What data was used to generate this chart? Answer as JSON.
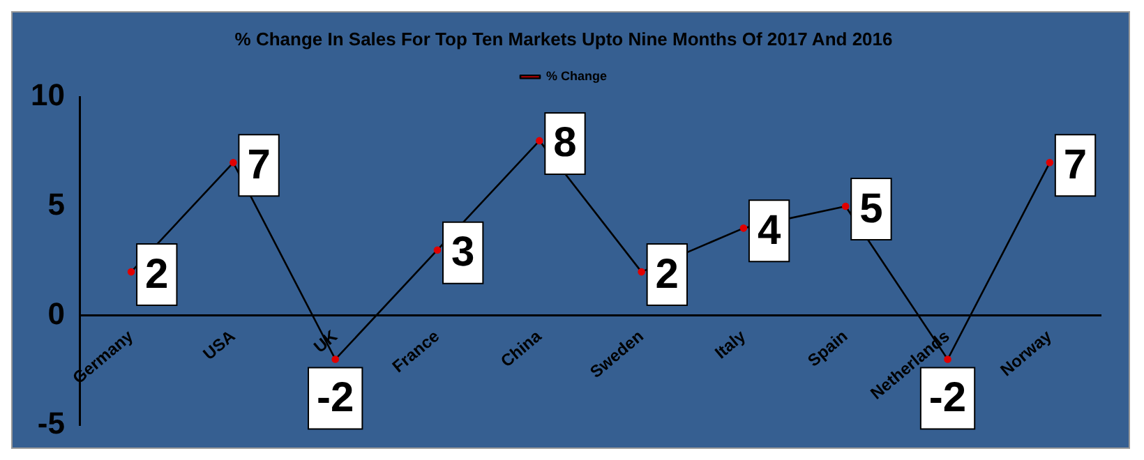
{
  "chart_data": {
    "type": "line",
    "title": "% Change In Sales For Top Ten Markets Upto Nine Months Of 2017 And 2016",
    "categories": [
      "Germany",
      "USA",
      "UK",
      "France",
      "China",
      "Sweden",
      "Italy",
      "Spain",
      "Netherlands",
      "Norway"
    ],
    "series": [
      {
        "name": "% Change",
        "color": "#000000",
        "values": [
          2,
          7,
          -2,
          3,
          8,
          2,
          4,
          5,
          -2,
          7
        ]
      }
    ],
    "ylim": [
      -5,
      10
    ],
    "yticks": [
      -5,
      0,
      5,
      10
    ],
    "grid": false,
    "legend": "top",
    "marker": "circle",
    "line_style": "solid",
    "data_labels": true
  }
}
